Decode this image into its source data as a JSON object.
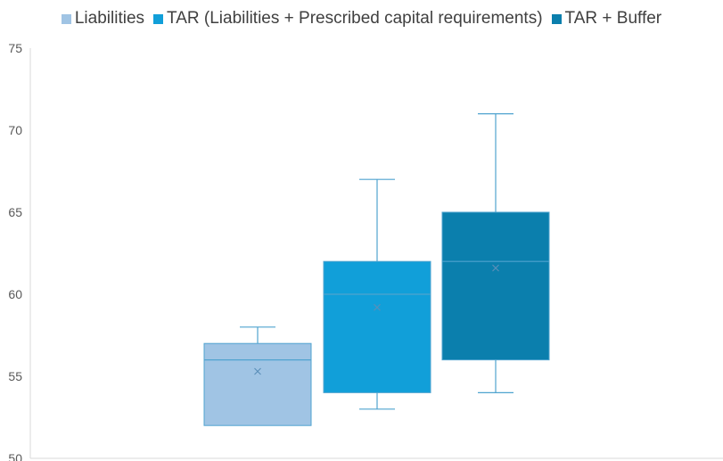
{
  "chart_data": {
    "type": "box",
    "title": "",
    "xlabel": "",
    "ylabel": "",
    "ylim": [
      50,
      75
    ],
    "yticks": [
      50,
      55,
      60,
      65,
      70,
      75
    ],
    "ytick_labels": [
      "50",
      "55",
      "60",
      "65",
      "70",
      "75"
    ],
    "grid": false,
    "legend_position": "top",
    "series": [
      {
        "name": "Liabilities",
        "color": "#a0c4e4",
        "min": 52,
        "q1": 52,
        "median": 56,
        "q3": 57,
        "max": 58,
        "mean": 55.3
      },
      {
        "name": "TAR (Liabilities + Prescribed capital requirements)",
        "color": "#119fd9",
        "min": 53,
        "q1": 54,
        "median": 60,
        "q3": 62,
        "max": 67,
        "mean": 59.2
      },
      {
        "name": "TAR + Buffer",
        "color": "#0b7fad",
        "min": 54,
        "q1": 56,
        "median": 62,
        "q3": 65,
        "max": 71,
        "mean": 61.6
      }
    ],
    "colors": {
      "axis": "#d9d9d9",
      "whisker": "#4fa3cf",
      "tick_text": "#595959",
      "mean_marker": "#5a8fb8"
    }
  }
}
